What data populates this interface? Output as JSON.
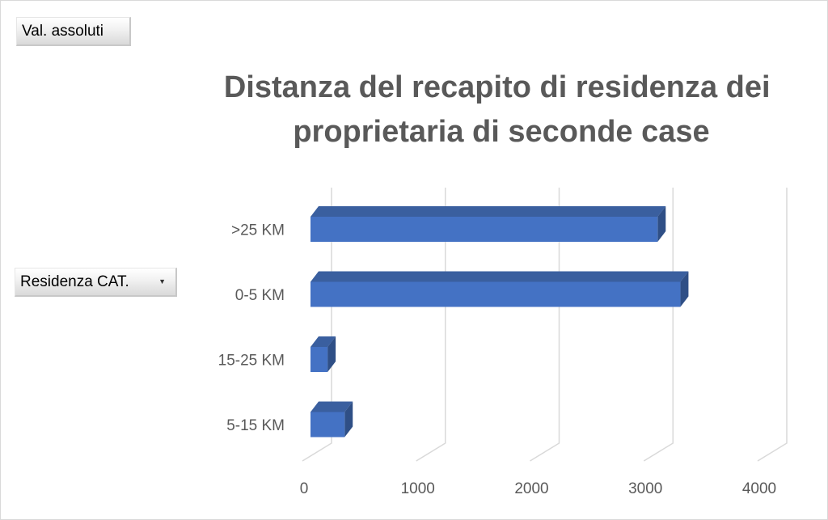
{
  "pivot": {
    "values_button": "Val. assoluti",
    "row_field_button": "Residenza CAT.",
    "row_field_dropdown_icon": "dropdown-arrow-icon"
  },
  "chart_data": {
    "type": "bar",
    "orientation": "horizontal",
    "style": "3d-clustered",
    "title": "Distanza del recapito di residenza dei proprietaria di seconde case",
    "title_lines": [
      "Distanza del recapito di residenza dei",
      "proprietaria di seconde case"
    ],
    "categories": [
      ">25 KM",
      "0-5  KM",
      "15-25 KM",
      "5-15 KM"
    ],
    "series": [
      {
        "values": [
          3050,
          3250,
          150,
          300
        ]
      }
    ],
    "xlim": [
      0,
      4000
    ],
    "xticks": [
      "0",
      "1000",
      "2000",
      "3000",
      "4000"
    ],
    "grid": true,
    "legend": "none",
    "colors": {
      "bar_front": "#4472c4",
      "bar_top": "#3a5f9f",
      "bar_side": "#2f4f86",
      "grid": "#d9d9d9",
      "text": "#595959"
    }
  }
}
